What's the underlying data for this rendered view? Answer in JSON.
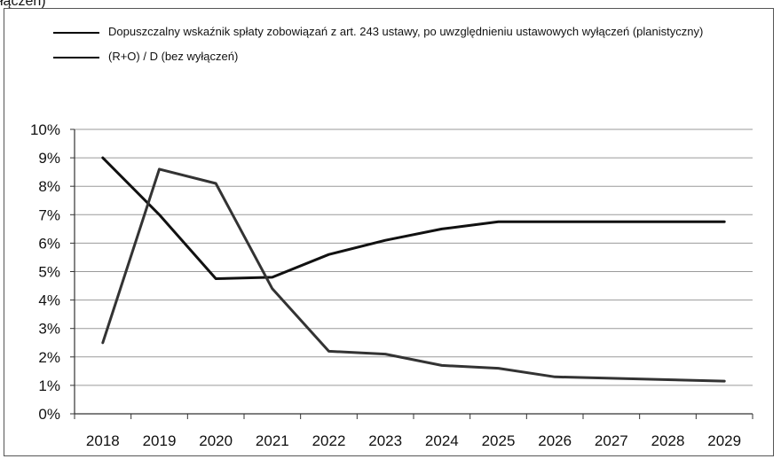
{
  "page": {
    "top_fragment": "łączeń)"
  },
  "chart_data": {
    "type": "line",
    "title": "",
    "xlabel": "",
    "ylabel": "",
    "categories": [
      "2018",
      "2019",
      "2020",
      "2021",
      "2022",
      "2023",
      "2024",
      "2025",
      "2026",
      "2027",
      "2028",
      "2029"
    ],
    "ylim": [
      0,
      10
    ],
    "y_ticks": [
      "0%",
      "1%",
      "2%",
      "3%",
      "4%",
      "5%",
      "6%",
      "7%",
      "8%",
      "9%",
      "10%"
    ],
    "grid": true,
    "legend_placement": "top-left",
    "series": [
      {
        "name": "Dopuszczalny wskaźnik spłaty zobowiązań z art. 243 ustawy, po uwzględnieniu ustawowych wyłączeń (planistyczny)",
        "color": "#111111",
        "values": [
          9.0,
          7.0,
          4.75,
          4.8,
          5.6,
          6.1,
          6.5,
          6.75,
          6.75,
          6.75,
          6.75,
          6.75
        ]
      },
      {
        "name": "(R+O) / D (bez wyłączeń)",
        "color": "#333333",
        "values": [
          2.5,
          8.6,
          8.1,
          4.4,
          2.2,
          2.1,
          1.7,
          1.6,
          1.3,
          1.25,
          1.2,
          1.15
        ]
      }
    ]
  }
}
